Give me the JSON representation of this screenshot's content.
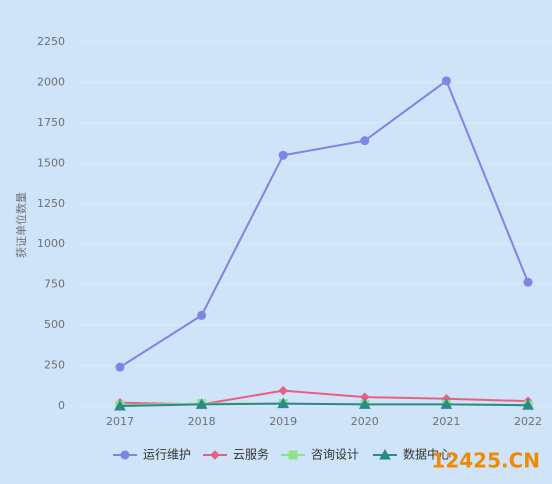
{
  "chart_data": {
    "type": "line",
    "y_label": "获证单位数量",
    "categories": [
      "2017",
      "2018",
      "2019",
      "2020",
      "2021",
      "2022"
    ],
    "series": [
      {
        "name": "运行维护",
        "color": "#7b86e6",
        "marker": "circle",
        "values": [
          240,
          560,
          1550,
          1640,
          2010,
          765
        ]
      },
      {
        "name": "云服务",
        "color": "#e8607f",
        "marker": "diamond",
        "values": [
          20,
          10,
          95,
          55,
          45,
          30
        ]
      },
      {
        "name": "咨询设计",
        "color": "#8fe38a",
        "marker": "square",
        "values": [
          5,
          15,
          15,
          10,
          10,
          5
        ]
      },
      {
        "name": "数据中心",
        "color": "#2a8a8a",
        "marker": "triangle",
        "values": [
          0,
          10,
          15,
          10,
          10,
          5
        ]
      }
    ],
    "ylim": [
      0,
      2250
    ],
    "yticks": [
      0,
      250,
      500,
      750,
      1000,
      1250,
      1500,
      1750,
      2000,
      2250
    ],
    "grid": true
  },
  "watermark": "12425.CN"
}
